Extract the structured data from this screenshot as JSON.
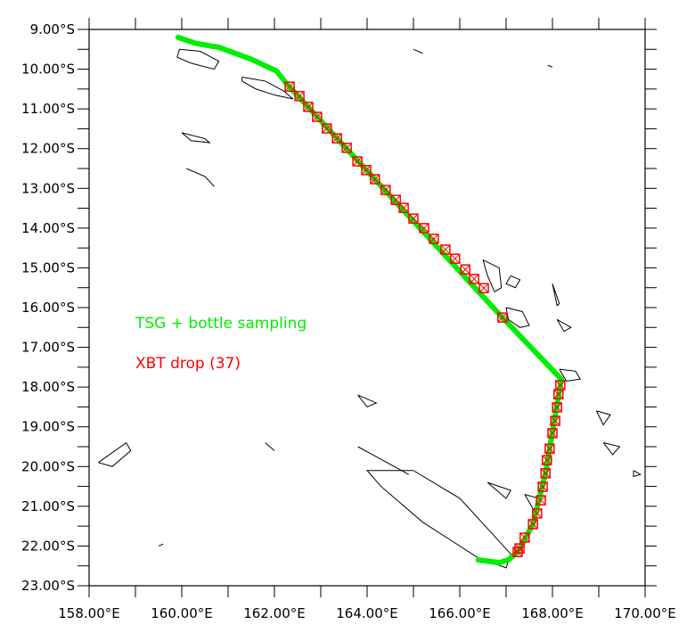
{
  "chart_data": {
    "type": "scatter",
    "projection": "lon-lat",
    "xlim": [
      158,
      170
    ],
    "ylim": [
      -23,
      -9
    ],
    "x_ticks": [
      158,
      159,
      160,
      161,
      162,
      163,
      164,
      165,
      166,
      167,
      168,
      169,
      170
    ],
    "x_tick_labels": [
      {
        "value": 158,
        "label": "158.00°E"
      },
      {
        "value": 160,
        "label": "160.00°E"
      },
      {
        "value": 162,
        "label": "162.00°E"
      },
      {
        "value": 164,
        "label": "164.00°E"
      },
      {
        "value": 166,
        "label": "166.00°E"
      },
      {
        "value": 168,
        "label": "168.00°E"
      },
      {
        "value": 170,
        "label": "170.00°E"
      }
    ],
    "y_tick_labels": [
      {
        "value": -9,
        "label": "9.00°S"
      },
      {
        "value": -10,
        "label": "10.00°S"
      },
      {
        "value": -11,
        "label": "11.00°S"
      },
      {
        "value": -12,
        "label": "12.00°S"
      },
      {
        "value": -13,
        "label": "13.00°S"
      },
      {
        "value": -14,
        "label": "14.00°S"
      },
      {
        "value": -15,
        "label": "15.00°S"
      },
      {
        "value": -16,
        "label": "16.00°S"
      },
      {
        "value": -17,
        "label": "17.00°S"
      },
      {
        "value": -18,
        "label": "18.00°S"
      },
      {
        "value": -19,
        "label": "19.00°S"
      },
      {
        "value": -20,
        "label": "20.00°S"
      },
      {
        "value": -21,
        "label": "21.00°S"
      },
      {
        "value": -22,
        "label": "22.00°S"
      },
      {
        "value": -23,
        "label": "23.00°S"
      }
    ],
    "series": [
      {
        "name": "TSG + bottle sampling",
        "label": "TSG + bottle sampling",
        "color": "#00ee00",
        "type": "line",
        "points": [
          [
            159.92,
            -9.2
          ],
          [
            160.3,
            -9.35
          ],
          [
            160.8,
            -9.45
          ],
          [
            161.5,
            -9.75
          ],
          [
            162.05,
            -10.05
          ],
          [
            162.25,
            -10.35
          ],
          [
            166.92,
            -16.25
          ],
          [
            168.19,
            -17.8
          ],
          [
            168.17,
            -17.95
          ],
          [
            167.85,
            -20.17
          ],
          [
            167.58,
            -21.45
          ],
          [
            167.25,
            -22.15
          ],
          [
            167.05,
            -22.35
          ],
          [
            166.85,
            -22.42
          ],
          [
            166.4,
            -22.35
          ]
        ]
      },
      {
        "name": "XBT drop (37)",
        "label": "XBT drop (37)",
        "color": "#ff0000",
        "type": "scatter",
        "points": [
          [
            162.33,
            -10.44
          ],
          [
            162.54,
            -10.68
          ],
          [
            162.73,
            -10.95
          ],
          [
            162.92,
            -11.2
          ],
          [
            163.13,
            -11.49
          ],
          [
            163.35,
            -11.74
          ],
          [
            163.56,
            -11.98
          ],
          [
            163.79,
            -12.32
          ],
          [
            163.98,
            -12.54
          ],
          [
            164.17,
            -12.77
          ],
          [
            164.4,
            -13.04
          ],
          [
            164.62,
            -13.29
          ],
          [
            164.79,
            -13.49
          ],
          [
            165.0,
            -13.76
          ],
          [
            165.23,
            -14.0
          ],
          [
            165.44,
            -14.27
          ],
          [
            165.69,
            -14.54
          ],
          [
            165.9,
            -14.77
          ],
          [
            166.12,
            -15.04
          ],
          [
            166.31,
            -15.28
          ],
          [
            166.52,
            -15.51
          ],
          [
            166.92,
            -16.25
          ],
          [
            168.17,
            -17.95
          ],
          [
            168.13,
            -18.18
          ],
          [
            168.1,
            -18.51
          ],
          [
            168.06,
            -18.85
          ],
          [
            168.0,
            -19.16
          ],
          [
            167.94,
            -19.55
          ],
          [
            167.88,
            -19.84
          ],
          [
            167.85,
            -20.17
          ],
          [
            167.79,
            -20.51
          ],
          [
            167.75,
            -20.85
          ],
          [
            167.67,
            -21.18
          ],
          [
            167.58,
            -21.45
          ],
          [
            167.4,
            -21.79
          ],
          [
            167.29,
            -22.06
          ],
          [
            167.25,
            -22.15
          ]
        ]
      }
    ],
    "legend": "left-middle inside plot"
  }
}
